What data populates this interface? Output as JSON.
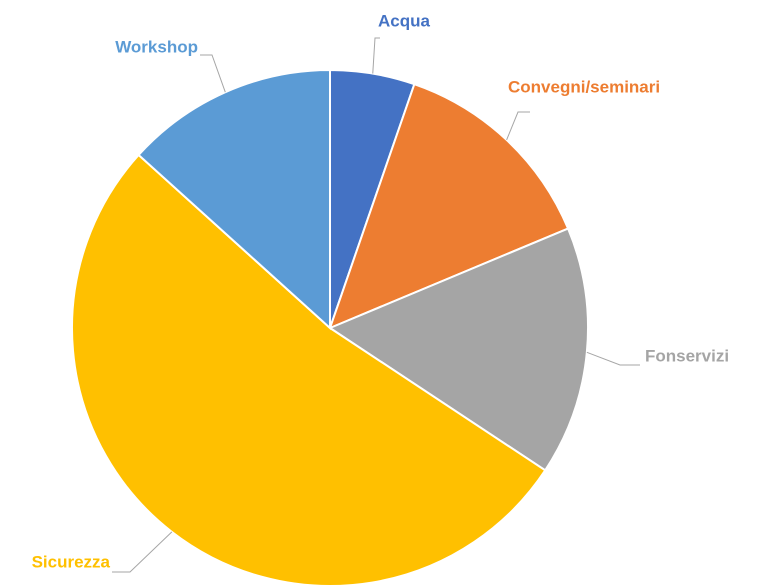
{
  "chart_data": {
    "type": "pie",
    "categories": [
      "Acqua",
      "Convegni/seminari",
      "Fonservizi",
      "Sicurezza",
      "Workshop"
    ],
    "values": [
      5.3,
      13.4,
      15.6,
      52.4,
      13.3
    ],
    "colors": [
      "#4472c4",
      "#ed7d31",
      "#a5a5a5",
      "#ffc000",
      "#5b9bd5"
    ]
  }
}
